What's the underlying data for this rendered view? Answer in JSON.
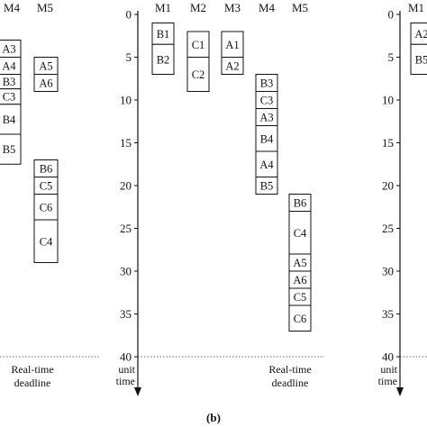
{
  "left_panel": {
    "machine_labels": [
      "M4",
      "M5"
    ],
    "columns": [
      {
        "machine": "M4",
        "blocks": [
          {
            "label": "A3",
            "start": 3,
            "end": 5
          },
          {
            "label": "A4",
            "start": 5,
            "end": 7
          },
          {
            "label": "B3",
            "start": 7,
            "end": 8.7
          },
          {
            "label": "C3",
            "start": 8.7,
            "end": 10.5
          },
          {
            "label": "B4",
            "start": 10.5,
            "end": 14
          },
          {
            "label": "B5",
            "start": 14,
            "end": 17.5
          }
        ]
      },
      {
        "machine": "M5",
        "blocks": [
          {
            "label": "A5",
            "start": 5,
            "end": 7
          },
          {
            "label": "A6",
            "start": 7,
            "end": 9
          }
        ]
      },
      {
        "machine": "M5",
        "blocks": [
          {
            "label": "B6",
            "start": 17,
            "end": 19
          },
          {
            "label": "C5",
            "start": 19,
            "end": 21
          },
          {
            "label": "C6",
            "start": 21,
            "end": 24
          },
          {
            "label": "C4",
            "start": 24,
            "end": 29
          }
        ]
      }
    ],
    "deadline_label": [
      "Real-time",
      "deadline"
    ]
  },
  "center_panel": {
    "machine_labels": [
      "M1",
      "M2",
      "M3",
      "M4",
      "M5"
    ],
    "axis": {
      "ticks": [
        0,
        5,
        10,
        15,
        20,
        25,
        30,
        35,
        40
      ],
      "unit_label": [
        "unit",
        "time"
      ],
      "deadline": 40
    },
    "columns": [
      {
        "machine": "M1",
        "blocks": [
          {
            "label": "B1",
            "start": 1,
            "end": 3.5
          },
          {
            "label": "B2",
            "start": 3.5,
            "end": 7
          }
        ]
      },
      {
        "machine": "M2",
        "blocks": [
          {
            "label": "C1",
            "start": 2,
            "end": 5
          },
          {
            "label": "C2",
            "start": 5,
            "end": 9
          }
        ]
      },
      {
        "machine": "M3",
        "blocks": [
          {
            "label": "A1",
            "start": 2,
            "end": 5
          },
          {
            "label": "A2",
            "start": 5,
            "end": 7
          }
        ]
      },
      {
        "machine": "M4",
        "blocks": [
          {
            "label": "B3",
            "start": 7,
            "end": 9
          },
          {
            "label": "C3",
            "start": 9,
            "end": 11
          },
          {
            "label": "A3",
            "start": 11,
            "end": 13
          },
          {
            "label": "B4",
            "start": 13,
            "end": 16
          },
          {
            "label": "A4",
            "start": 16,
            "end": 19
          },
          {
            "label": "B5",
            "start": 19,
            "end": 21
          }
        ]
      },
      {
        "machine": "M5",
        "blocks": [
          {
            "label": "B6",
            "start": 21,
            "end": 23
          },
          {
            "label": "C4",
            "start": 23,
            "end": 28
          },
          {
            "label": "A5",
            "start": 28,
            "end": 30
          },
          {
            "label": "A6",
            "start": 30,
            "end": 32
          },
          {
            "label": "C5",
            "start": 32,
            "end": 34
          },
          {
            "label": "C6",
            "start": 34,
            "end": 37
          }
        ]
      }
    ],
    "deadline_label": [
      "Real-time",
      "deadline"
    ],
    "caption": "(b)"
  },
  "right_panel": {
    "machine_labels": [
      "M1"
    ],
    "axis": {
      "ticks": [
        0,
        5,
        10,
        15,
        20,
        25,
        30,
        35,
        40
      ],
      "unit_label": [
        "unit",
        "time"
      ],
      "deadline": 40
    },
    "columns": [
      {
        "machine": "M1",
        "blocks": [
          {
            "label": "A2",
            "start": 1,
            "end": 3.5
          },
          {
            "label": "B5",
            "start": 3.5,
            "end": 7
          }
        ]
      }
    ]
  }
}
